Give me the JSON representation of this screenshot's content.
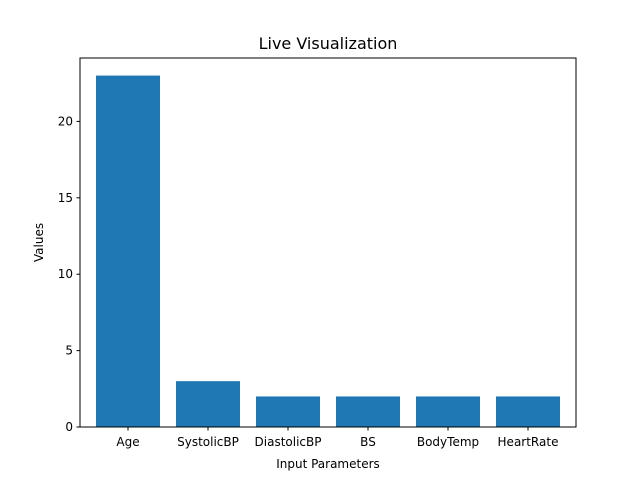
{
  "chart_data": {
    "type": "bar",
    "title": "Live Visualization",
    "xlabel": "Input Parameters",
    "ylabel": "Values",
    "categories": [
      "Age",
      "SystolicBP",
      "DiastolicBP",
      "BS",
      "BodyTemp",
      "HeartRate"
    ],
    "values": [
      23,
      3,
      2,
      2,
      2,
      2
    ],
    "ylim": [
      0,
      24.15
    ],
    "yticks": [
      0,
      5,
      10,
      15,
      20
    ],
    "grid": false,
    "bar_color": "#1f77b4"
  }
}
